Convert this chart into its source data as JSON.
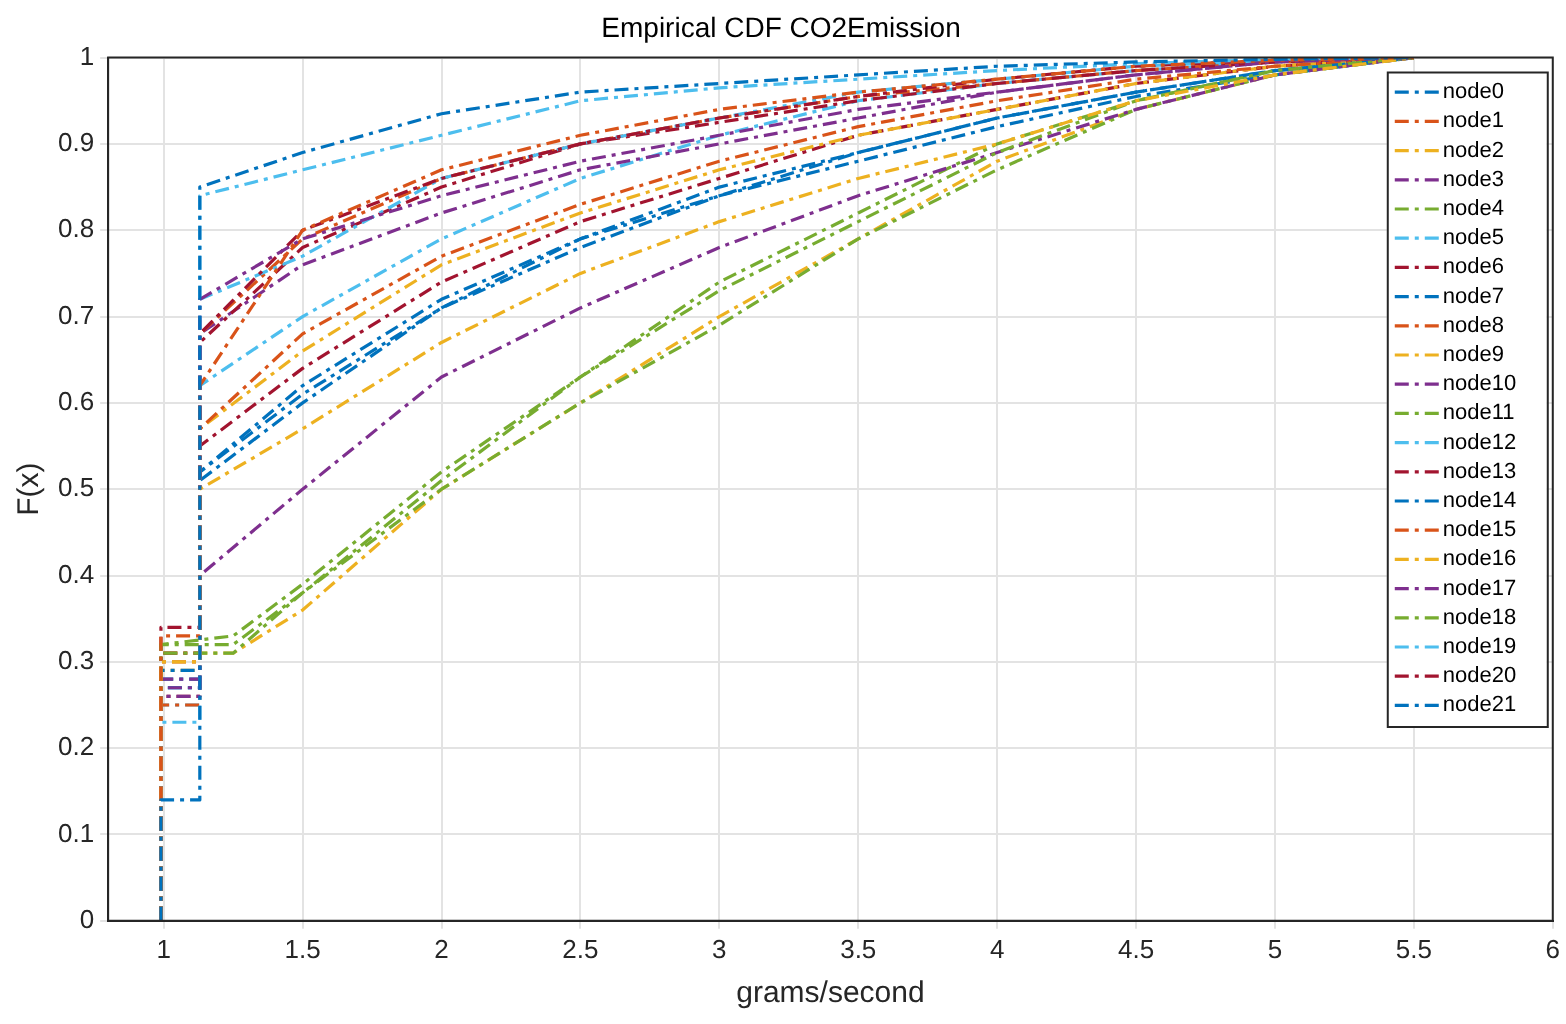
{
  "chart_data": {
    "type": "line",
    "title": "Empirical CDF CO2Emission",
    "xlabel": "grams/second",
    "ylabel": "F(x)",
    "xlim": [
      0.8,
      6
    ],
    "xticks": [
      1,
      1.5,
      2,
      2.5,
      3,
      3.5,
      4,
      4.5,
      5,
      5.5,
      6
    ],
    "ylim": [
      0,
      1
    ],
    "yticks": [
      0,
      0.1,
      0.2,
      0.3,
      0.4,
      0.5,
      0.6,
      0.7,
      0.8,
      0.9,
      1
    ],
    "grid": true,
    "legend": "top right",
    "marker": "none",
    "line_style": "dashed",
    "series": [
      {
        "name": "node0",
        "color": "#0072bd",
        "x": [
          0.99,
          0.99,
          1.13,
          1.13,
          1.5,
          2,
          2.5,
          3,
          3.5,
          4,
          4.5,
          5,
          5.5
        ],
        "values": [
          0,
          0.14,
          0.14,
          0.85,
          0.89,
          0.935,
          0.96,
          0.97,
          0.98,
          0.99,
          0.995,
          0.998,
          1
        ]
      },
      {
        "name": "node1",
        "color": "#d95319",
        "x": [
          0.99,
          0.99,
          1.13,
          1.13,
          1.5,
          2,
          2.5,
          3,
          3.5,
          4,
          4.5,
          5,
          5.5
        ],
        "values": [
          0,
          0.33,
          0.33,
          0.62,
          0.8,
          0.87,
          0.91,
          0.94,
          0.96,
          0.975,
          0.99,
          0.997,
          1
        ]
      },
      {
        "name": "node2",
        "color": "#edb120",
        "x": [
          0.99,
          0.99,
          1.13,
          1.13,
          1.5,
          2,
          2.5,
          3,
          3.5,
          4,
          4.5,
          5,
          5.5
        ],
        "values": [
          0,
          0.3,
          0.3,
          0.5,
          0.57,
          0.67,
          0.75,
          0.81,
          0.86,
          0.9,
          0.95,
          0.98,
          1
        ]
      },
      {
        "name": "node3",
        "color": "#7e2f8e",
        "x": [
          0.99,
          0.99,
          1.13,
          1.13,
          1.5,
          2,
          2.5,
          3,
          3.5,
          4,
          4.5,
          5,
          5.5
        ],
        "values": [
          0,
          0.26,
          0.26,
          0.72,
          0.79,
          0.84,
          0.88,
          0.91,
          0.94,
          0.96,
          0.98,
          0.995,
          1
        ]
      },
      {
        "name": "node4",
        "color": "#77ac30",
        "x": [
          0.99,
          0.99,
          1.25,
          1.5,
          2,
          2.5,
          3,
          3.5,
          4,
          4.5,
          5,
          5.5
        ],
        "values": [
          0,
          0.32,
          0.33,
          0.39,
          0.52,
          0.63,
          0.73,
          0.81,
          0.89,
          0.95,
          0.985,
          1
        ]
      },
      {
        "name": "node5",
        "color": "#4dbeee",
        "x": [
          0.99,
          0.99,
          1.13,
          1.13,
          1.5,
          2,
          2.5,
          3,
          3.5,
          4,
          4.5,
          5,
          5.5
        ],
        "values": [
          0,
          0.23,
          0.23,
          0.84,
          0.87,
          0.91,
          0.95,
          0.965,
          0.975,
          0.985,
          0.993,
          0.998,
          1
        ]
      },
      {
        "name": "node6",
        "color": "#a2142f",
        "x": [
          0.99,
          0.99,
          1.13,
          1.13,
          1.5,
          2,
          2.5,
          3,
          3.5,
          4,
          4.5,
          5,
          5.5
        ],
        "values": [
          0,
          0.34,
          0.34,
          0.68,
          0.8,
          0.86,
          0.9,
          0.93,
          0.955,
          0.975,
          0.99,
          0.997,
          1
        ]
      },
      {
        "name": "node7",
        "color": "#0072bd",
        "x": [
          0.99,
          0.99,
          1.13,
          1.13,
          1.5,
          2,
          2.5,
          3,
          3.5,
          4,
          4.5,
          5,
          5.5
        ],
        "values": [
          0,
          0.29,
          0.29,
          0.52,
          0.62,
          0.72,
          0.79,
          0.85,
          0.89,
          0.93,
          0.96,
          0.985,
          1
        ]
      },
      {
        "name": "node8",
        "color": "#d95319",
        "x": [
          0.99,
          0.99,
          1.13,
          1.13,
          1.5,
          2,
          2.5,
          3,
          3.5,
          4,
          4.5,
          5,
          5.5
        ],
        "values": [
          0,
          0.25,
          0.25,
          0.57,
          0.68,
          0.77,
          0.83,
          0.88,
          0.92,
          0.95,
          0.975,
          0.99,
          1
        ]
      },
      {
        "name": "node9",
        "color": "#edb120",
        "x": [
          0.99,
          0.99,
          1.13,
          1.13,
          1.5,
          2,
          2.5,
          3,
          3.5,
          4,
          4.5,
          5,
          5.5
        ],
        "values": [
          0,
          0.29,
          0.29,
          0.57,
          0.66,
          0.76,
          0.82,
          0.87,
          0.91,
          0.94,
          0.97,
          0.99,
          1
        ]
      },
      {
        "name": "node10",
        "color": "#7e2f8e",
        "x": [
          0.99,
          0.99,
          1.13,
          1.13,
          1.5,
          2,
          2.5,
          3,
          3.5,
          4,
          4.5,
          5,
          5.5
        ],
        "values": [
          0,
          0.27,
          0.27,
          0.4,
          0.5,
          0.63,
          0.71,
          0.78,
          0.84,
          0.89,
          0.94,
          0.98,
          1
        ]
      },
      {
        "name": "node11",
        "color": "#77ac30",
        "x": [
          0.99,
          0.99,
          1.25,
          1.5,
          2,
          2.5,
          3,
          3.5,
          4,
          4.5,
          5,
          5.5
        ],
        "values": [
          0,
          0.31,
          0.31,
          0.38,
          0.5,
          0.6,
          0.69,
          0.79,
          0.87,
          0.94,
          0.98,
          1
        ]
      },
      {
        "name": "node12",
        "color": "#4dbeee",
        "x": [
          0.99,
          0.99,
          1.13,
          1.13,
          1.5,
          2,
          2.5,
          3,
          3.5,
          4,
          4.5,
          5,
          5.5
        ],
        "values": [
          0,
          0.25,
          0.25,
          0.72,
          0.77,
          0.86,
          0.9,
          0.93,
          0.96,
          0.975,
          0.99,
          0.997,
          1
        ]
      },
      {
        "name": "node13",
        "color": "#a2142f",
        "x": [
          0.99,
          0.99,
          1.13,
          1.13,
          1.5,
          2,
          2.5,
          3,
          3.5,
          4,
          4.5,
          5,
          5.5
        ],
        "values": [
          0,
          0.31,
          0.31,
          0.67,
          0.78,
          0.85,
          0.9,
          0.925,
          0.95,
          0.97,
          0.985,
          0.995,
          1
        ]
      },
      {
        "name": "node14",
        "color": "#0072bd",
        "x": [
          0.99,
          0.99,
          1.13,
          1.13,
          1.5,
          2,
          2.5,
          3,
          3.5,
          4,
          4.5,
          5,
          5.5
        ],
        "values": [
          0,
          0.27,
          0.27,
          0.51,
          0.6,
          0.71,
          0.78,
          0.84,
          0.89,
          0.93,
          0.96,
          0.985,
          1
        ]
      },
      {
        "name": "node15",
        "color": "#d95319",
        "x": [
          0.99,
          0.99,
          1.13,
          1.13,
          1.5,
          2,
          2.5,
          3,
          3.5,
          4,
          4.5,
          5,
          5.5
        ],
        "values": [
          0,
          0.3,
          0.3,
          0.68,
          0.79,
          0.86,
          0.9,
          0.93,
          0.955,
          0.97,
          0.985,
          0.995,
          1
        ]
      },
      {
        "name": "node16",
        "color": "#edb120",
        "x": [
          0.99,
          0.99,
          1.25,
          1.5,
          2,
          2.5,
          3,
          3.5,
          4,
          4.5,
          5,
          5.5
        ],
        "values": [
          0,
          0.31,
          0.31,
          0.36,
          0.5,
          0.6,
          0.7,
          0.79,
          0.88,
          0.94,
          0.98,
          1
        ]
      },
      {
        "name": "node17",
        "color": "#7e2f8e",
        "x": [
          0.99,
          0.99,
          1.13,
          1.13,
          1.5,
          2,
          2.5,
          3,
          3.5,
          4,
          4.5,
          5,
          5.5
        ],
        "values": [
          0,
          0.28,
          0.28,
          0.68,
          0.76,
          0.82,
          0.87,
          0.9,
          0.93,
          0.96,
          0.98,
          0.995,
          1
        ]
      },
      {
        "name": "node18",
        "color": "#77ac30",
        "x": [
          0.99,
          0.99,
          1.25,
          1.5,
          2,
          2.5,
          3,
          3.5,
          4,
          4.5,
          5,
          5.5
        ],
        "values": [
          0,
          0.32,
          0.32,
          0.38,
          0.51,
          0.63,
          0.74,
          0.82,
          0.9,
          0.95,
          0.985,
          1
        ]
      },
      {
        "name": "node19",
        "color": "#4dbeee",
        "x": [
          0.99,
          0.99,
          1.13,
          1.13,
          1.5,
          2,
          2.5,
          3,
          3.5,
          4,
          4.5,
          5,
          5.5
        ],
        "values": [
          0,
          0.27,
          0.27,
          0.62,
          0.7,
          0.79,
          0.86,
          0.91,
          0.95,
          0.97,
          0.985,
          0.995,
          1
        ]
      },
      {
        "name": "node20",
        "color": "#a2142f",
        "x": [
          0.99,
          0.99,
          1.13,
          1.13,
          1.5,
          2,
          2.5,
          3,
          3.5,
          4,
          4.5,
          5,
          5.5
        ],
        "values": [
          0,
          0.26,
          0.26,
          0.55,
          0.64,
          0.74,
          0.81,
          0.86,
          0.91,
          0.94,
          0.97,
          0.99,
          1
        ]
      },
      {
        "name": "node21",
        "color": "#0072bd",
        "x": [
          0.99,
          0.99,
          1.13,
          1.13,
          1.5,
          2,
          2.5,
          3,
          3.5,
          4,
          4.5,
          5,
          5.5
        ],
        "values": [
          0,
          0.28,
          0.28,
          0.52,
          0.61,
          0.71,
          0.79,
          0.84,
          0.88,
          0.92,
          0.955,
          0.98,
          1
        ]
      }
    ]
  }
}
